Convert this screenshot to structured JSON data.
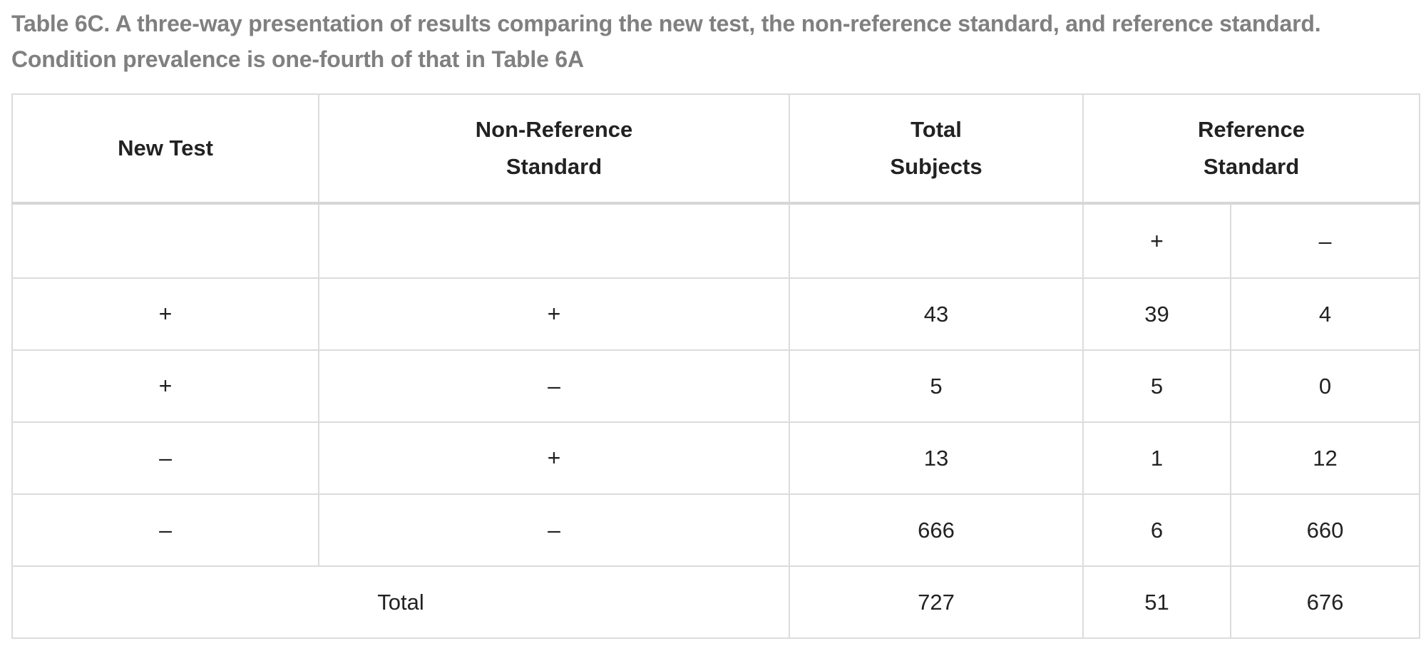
{
  "caption": "Table 6C. A three-way presentation of results comparing the new test, the non-reference standard, and reference standard. Condition prevalence is one-fourth of that in Table 6A",
  "headers": {
    "new_test": "New Test",
    "non_reference_line1": "Non-Reference",
    "non_reference_line2": "Standard",
    "total_subjects_line1": "Total",
    "total_subjects_line2": "Subjects",
    "reference_line1": "Reference",
    "reference_line2": "Standard"
  },
  "subheaders": {
    "ref_pos": "+",
    "ref_neg": "–"
  },
  "rows": [
    {
      "new_test": "+",
      "non_reference": "+",
      "total": "43",
      "ref_pos": "39",
      "ref_neg": "4"
    },
    {
      "new_test": "+",
      "non_reference": "–",
      "total": "5",
      "ref_pos": "5",
      "ref_neg": "0"
    },
    {
      "new_test": "–",
      "non_reference": "+",
      "total": "13",
      "ref_pos": "1",
      "ref_neg": "12"
    },
    {
      "new_test": "–",
      "non_reference": "–",
      "total": "666",
      "ref_pos": "6",
      "ref_neg": "660"
    }
  ],
  "totals": {
    "label": "Total",
    "total": "727",
    "ref_pos": "51",
    "ref_neg": "676"
  }
}
